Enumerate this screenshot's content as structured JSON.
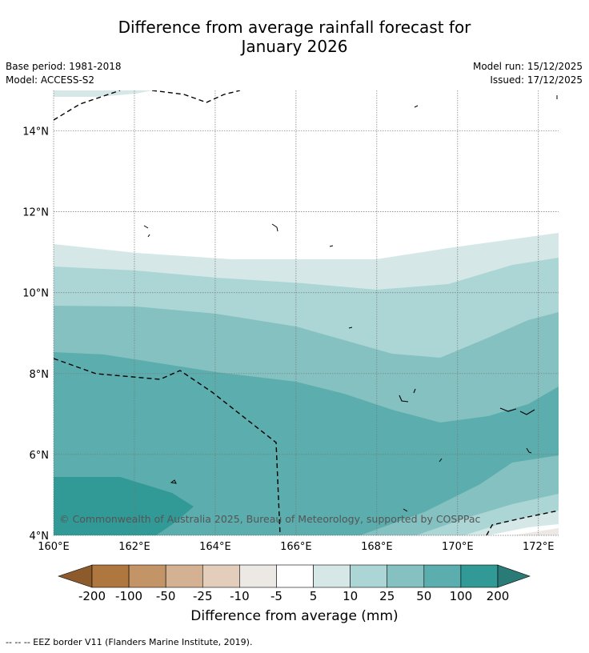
{
  "title_line1": "Difference from average rainfall forecast for",
  "title_line2": "January 2026",
  "meta": {
    "base_period": "Base period: 1981-2018",
    "model": "Model: ACCESS-S2",
    "model_run": "Model run: 15/12/2025",
    "issued": "Issued: 17/12/2025"
  },
  "axes": {
    "lat_labels": [
      "14°N",
      "12°N",
      "10°N",
      "8°N",
      "6°N",
      "4°N"
    ],
    "lon_labels": [
      "160°E",
      "162°E",
      "164°E",
      "166°E",
      "168°E",
      "170°E",
      "172°E"
    ]
  },
  "copyright": "© Commonwealth of Australia 2025, Bureau of Meteorology, supported by COSPPac",
  "colorbar": {
    "title": "Difference from average (mm)",
    "labels": [
      "-200",
      "-100",
      "-50",
      "-25",
      "-10",
      "-5",
      "5",
      "10",
      "25",
      "50",
      "100",
      "200"
    ],
    "colors": [
      "#8c5a2b",
      "#ae773f",
      "#c29466",
      "#d4b192",
      "#e3cdbb",
      "#ece8e4",
      "#ffffff",
      "#d5e8e7",
      "#acd6d5",
      "#85c1c0",
      "#5cadad",
      "#319996",
      "#2a7a77"
    ]
  },
  "footer": "--  --  -- EEZ border V11 (Flanders Marine Institute, 2019).",
  "chart_data": {
    "type": "map",
    "region": {
      "lon": [
        160,
        172.5
      ],
      "lat": [
        4,
        15
      ]
    },
    "variable": "Difference from average rainfall (mm), January 2026",
    "pattern": "Positive anomalies throughout; strongest (+50 to +100 mm, locally >100 mm) in the south-west near 4-5°N 160-163°E, decreasing northward to near average (-5 to 5 mm) north of about 11°N; small negative anomalies near 4°N 171-172.5°E"
  }
}
